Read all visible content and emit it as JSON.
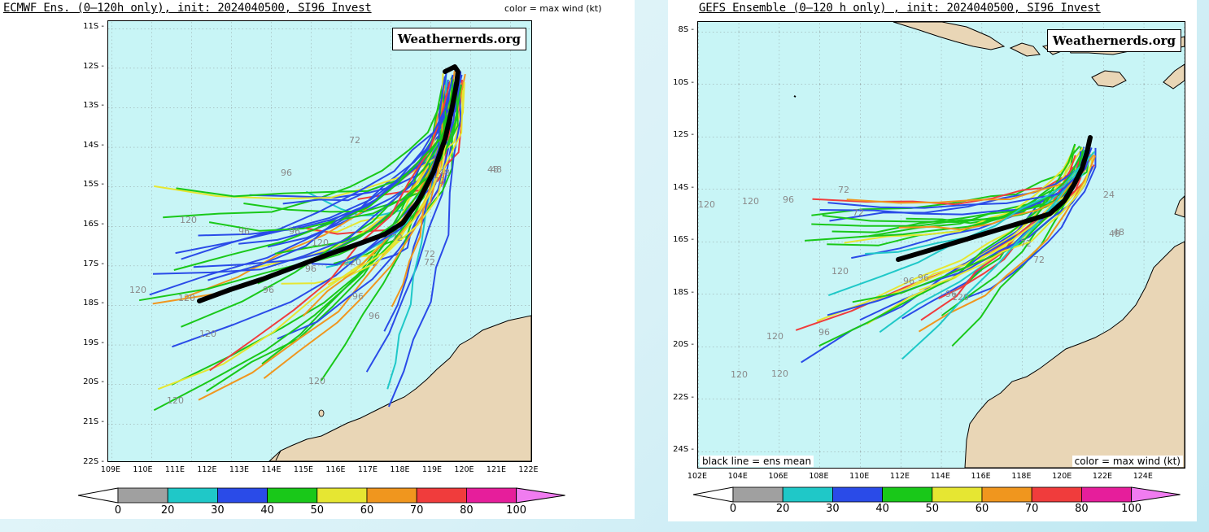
{
  "left": {
    "title": "ECMWF Ens. (0–120h only), init: 2024040500, SI96 Invest",
    "color_key": "color = max wind (kt)",
    "watermark": "Weathernerds.org",
    "y_ticks": [
      "11S",
      "12S",
      "13S",
      "14S",
      "15S",
      "16S",
      "17S",
      "18S",
      "19S",
      "20S",
      "21S",
      "22S"
    ],
    "x_ticks": [
      "109E",
      "110E",
      "111E",
      "112E",
      "113E",
      "114E",
      "115E",
      "116E",
      "117E",
      "118E",
      "119E",
      "120E",
      "121E",
      "122E"
    ],
    "hour_labels": [
      "72",
      "96",
      "96",
      "96",
      "96",
      "96",
      "96",
      "96",
      "120",
      "120",
      "120",
      "120",
      "120",
      "120",
      "120",
      "120",
      "48",
      "72",
      "72",
      "72",
      "48",
      "48",
      "72"
    ]
  },
  "right": {
    "title": "GEFS Ensemble (0–120 h only) , init: 2024040500, SI96 Invest",
    "watermark": "Weathernerds.org",
    "mean_note": "black line = ens mean",
    "color_key": "color = max wind (kt)",
    "y_ticks": [
      "8S",
      "10S",
      "12S",
      "14S",
      "16S",
      "18S",
      "20S",
      "22S",
      "24S"
    ],
    "x_ticks": [
      "102E",
      "104E",
      "106E",
      "108E",
      "110E",
      "112E",
      "114E",
      "116E",
      "118E",
      "120E",
      "122E",
      "124E"
    ],
    "hour_labels": [
      "120",
      "120",
      "96",
      "72",
      "72",
      "120",
      "96",
      "96",
      "96",
      "120",
      "120",
      "120",
      "96",
      "120",
      "48",
      "48",
      "72",
      "24",
      "72"
    ]
  },
  "colorbar": {
    "labels": [
      "0",
      "20",
      "30",
      "40",
      "50",
      "60",
      "70",
      "80",
      "100"
    ],
    "colors": [
      "#ffffff",
      "#a0a0a0",
      "#1fc8c8",
      "#2a4be8",
      "#19c819",
      "#e6e632",
      "#f0961e",
      "#f03c3c",
      "#e61e9b",
      "#f07cf0"
    ]
  }
}
